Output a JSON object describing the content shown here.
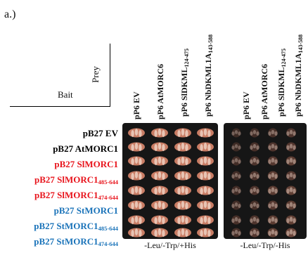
{
  "panel_label": "a.)",
  "corner": {
    "prey": "Prey",
    "bait": "Bait"
  },
  "prey": [
    {
      "main": "pP6 EV",
      "sub": ""
    },
    {
      "main": "pP6 AtMORC6",
      "sub": ""
    },
    {
      "main": "pP6 SlDKML",
      "sub": "124-475"
    },
    {
      "main": "pP6 NbDKML1A",
      "sub": "143-588"
    }
  ],
  "baits": [
    {
      "main": "pB27 EV",
      "sub": "",
      "color": "#000000"
    },
    {
      "main": "pB27 AtMORC1",
      "sub": "",
      "color": "#000000"
    },
    {
      "main": "pB27 SlMORC1",
      "sub": "",
      "color": "#e8141c"
    },
    {
      "main": "pB27 SlMORC1",
      "sub": "485-644",
      "color": "#e8141c"
    },
    {
      "main": "pB27 SlMORC1",
      "sub": "474-644",
      "color": "#e8141c"
    },
    {
      "main": "pB27 StMORC1",
      "sub": "",
      "color": "#1a73b9"
    },
    {
      "main": "pB27 StMORC1",
      "sub": "485-644",
      "color": "#1a73b9"
    },
    {
      "main": "pB27 StMORC1",
      "sub": "474-644",
      "color": "#1a73b9"
    }
  ],
  "plates": [
    {
      "condition": "-Leu/-Trp/+His",
      "growth": [
        [
          1,
          1,
          1,
          1
        ],
        [
          1,
          1,
          1,
          1
        ],
        [
          1,
          1,
          1,
          1
        ],
        [
          1,
          1,
          1,
          1
        ],
        [
          1,
          1,
          1,
          1
        ],
        [
          1,
          1,
          1,
          1
        ],
        [
          1,
          1,
          1,
          1
        ],
        [
          1,
          1,
          1,
          1
        ]
      ]
    },
    {
      "condition": "-Leu/-Trp/-His",
      "growth": [
        [
          0.15,
          0.2,
          0.25,
          0.3
        ],
        [
          0.15,
          0.25,
          0.3,
          0.35
        ],
        [
          0.2,
          0.3,
          0.35,
          0.4
        ],
        [
          0.2,
          0.3,
          0.4,
          0.35
        ],
        [
          0.2,
          0.3,
          0.4,
          0.45
        ],
        [
          0.2,
          0.25,
          0.35,
          0.4
        ],
        [
          0.25,
          0.3,
          0.4,
          0.45
        ],
        [
          0.25,
          0.35,
          0.45,
          0.5
        ]
      ]
    }
  ]
}
